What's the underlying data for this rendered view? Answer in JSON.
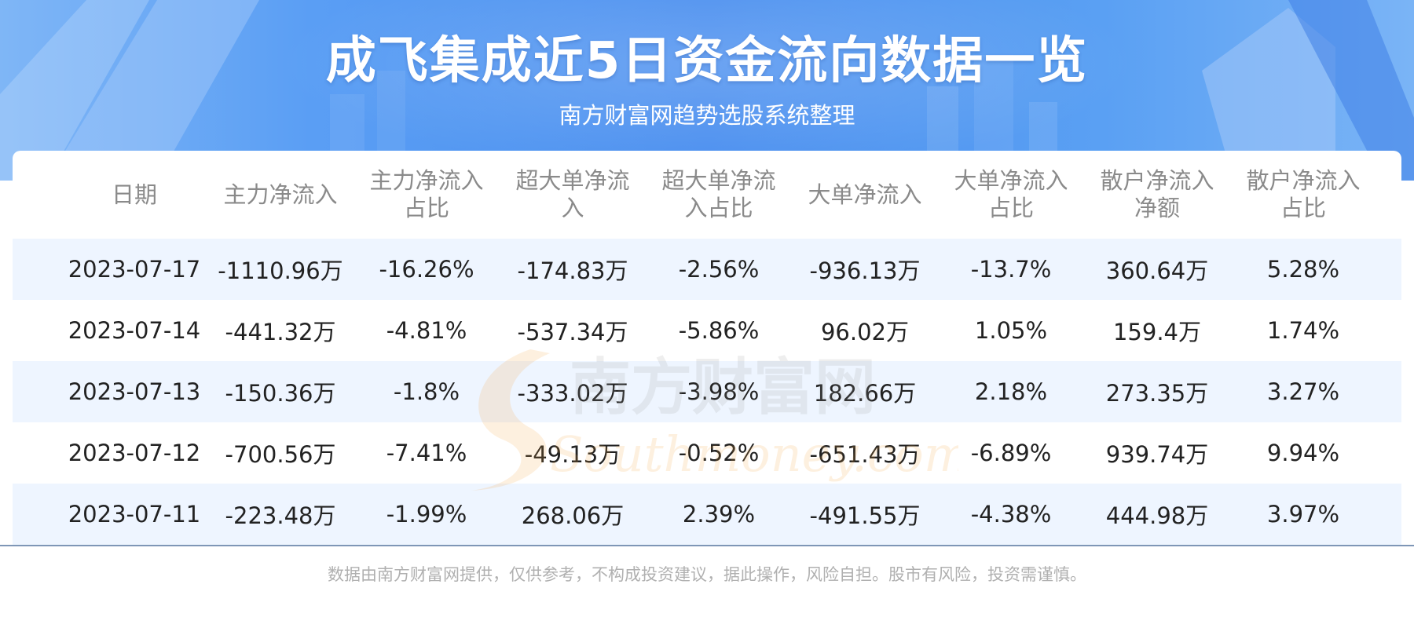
{
  "header": {
    "title": "成飞集成近5日资金流向数据一览",
    "subtitle": "南方财富网趋势选股系统整理"
  },
  "table": {
    "columns": [
      "日期",
      "主力净流入",
      "主力净流入占比",
      "超大单净流入",
      "超大单净流入占比",
      "大单净流入",
      "大单净流入占比",
      "散户净流入净额",
      "散户净流入占比"
    ],
    "rows": [
      [
        "2023-07-17",
        "-1110.96万",
        "-16.26%",
        "-174.83万",
        "-2.56%",
        "-936.13万",
        "-13.7%",
        "360.64万",
        "5.28%"
      ],
      [
        "2023-07-14",
        "-441.32万",
        "-4.81%",
        "-537.34万",
        "-5.86%",
        "96.02万",
        "1.05%",
        "159.4万",
        "1.74%"
      ],
      [
        "2023-07-13",
        "-150.36万",
        "-1.8%",
        "-333.02万",
        "-3.98%",
        "182.66万",
        "2.18%",
        "273.35万",
        "3.27%"
      ],
      [
        "2023-07-12",
        "-700.56万",
        "-7.41%",
        "-49.13万",
        "-0.52%",
        "-651.43万",
        "-6.89%",
        "939.74万",
        "9.94%"
      ],
      [
        "2023-07-11",
        "-223.48万",
        "-1.99%",
        "268.06万",
        "2.39%",
        "-491.55万",
        "-4.38%",
        "444.98万",
        "3.97%"
      ]
    ]
  },
  "watermark": {
    "cn": "南方财富网",
    "en": "Southmoney.com"
  },
  "footer": {
    "disclaimer": "数据由南方财富网提供，仅供参考，不构成投资建议，据此操作，风险自担。股市有风险，投资需谨慎。"
  },
  "colors": {
    "banner": "#4b8fef",
    "row_alt": "#eef5ff",
    "header_text": "#8a8a8a",
    "cell_text": "#222222"
  }
}
